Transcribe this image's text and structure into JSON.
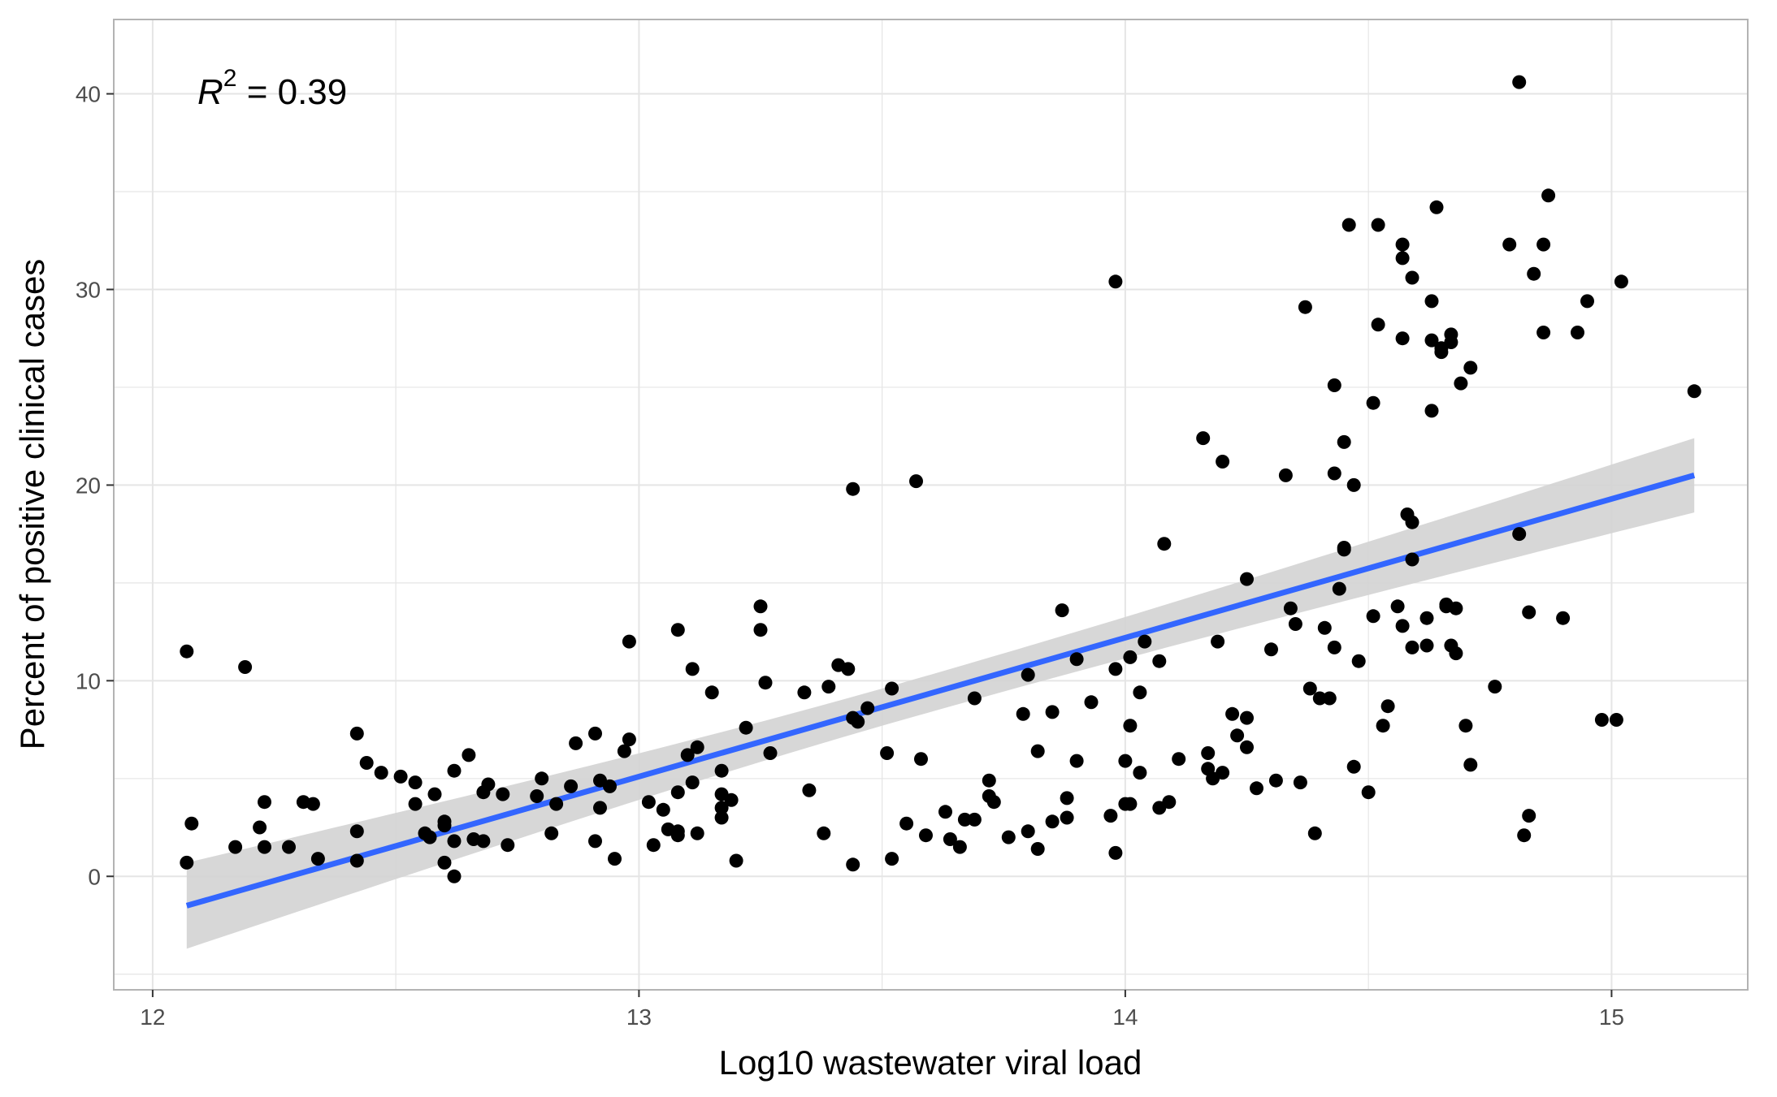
{
  "chart_data": {
    "type": "scatter",
    "xlabel": "Log10 wastewater viral load",
    "ylabel": "Percent of positive clinical cases",
    "xlim": [
      11.92,
      15.28
    ],
    "ylim": [
      -5.8,
      43.8
    ],
    "x_ticks": [
      "12",
      "13",
      "14",
      "15"
    ],
    "y_ticks": [
      "0",
      "10",
      "20",
      "30",
      "40"
    ],
    "grid": true,
    "annotation": {
      "r_symbol": "R",
      "r_exp": "2",
      "rest": " = 0.39"
    },
    "colors": {
      "points": "#000000",
      "fit": "#3366ff",
      "band": "#d3d3d3",
      "grid": "#e5e5e5",
      "border": "#b3b3b3"
    },
    "fit": {
      "x_start": 12.07,
      "y_start": -1.5,
      "x_end": 15.17,
      "y_end": 20.5,
      "ci_start": [
        -3.7,
        0.7
      ],
      "ci_end": [
        18.6,
        22.4
      ]
    },
    "points": [
      [
        12.07,
        11.5
      ],
      [
        12.08,
        2.7
      ],
      [
        12.07,
        0.7
      ],
      [
        12.17,
        1.5
      ],
      [
        12.19,
        10.7
      ],
      [
        12.23,
        3.8
      ],
      [
        12.22,
        2.5
      ],
      [
        12.23,
        1.5
      ],
      [
        12.28,
        1.5
      ],
      [
        12.31,
        3.8
      ],
      [
        12.33,
        3.7
      ],
      [
        12.34,
        0.9
      ],
      [
        12.42,
        7.3
      ],
      [
        12.42,
        2.3
      ],
      [
        12.42,
        0.8
      ],
      [
        12.44,
        5.8
      ],
      [
        12.47,
        5.3
      ],
      [
        12.51,
        5.1
      ],
      [
        12.54,
        4.8
      ],
      [
        12.54,
        3.7
      ],
      [
        12.56,
        2.2
      ],
      [
        12.57,
        2.0
      ],
      [
        12.58,
        4.2
      ],
      [
        12.6,
        2.8
      ],
      [
        12.6,
        2.6
      ],
      [
        12.6,
        0.7
      ],
      [
        12.62,
        5.4
      ],
      [
        12.62,
        1.8
      ],
      [
        12.62,
        0.0
      ],
      [
        12.65,
        6.2
      ],
      [
        12.66,
        1.9
      ],
      [
        12.68,
        4.3
      ],
      [
        12.68,
        1.8
      ],
      [
        12.69,
        4.7
      ],
      [
        12.72,
        4.2
      ],
      [
        12.73,
        1.6
      ],
      [
        12.79,
        4.1
      ],
      [
        12.8,
        5.0
      ],
      [
        12.82,
        2.2
      ],
      [
        12.83,
        3.7
      ],
      [
        12.86,
        4.6
      ],
      [
        12.87,
        6.8
      ],
      [
        12.91,
        7.3
      ],
      [
        12.91,
        1.8
      ],
      [
        12.92,
        3.5
      ],
      [
        12.92,
        4.9
      ],
      [
        12.94,
        4.6
      ],
      [
        12.95,
        0.9
      ],
      [
        12.97,
        6.4
      ],
      [
        12.98,
        7.0
      ],
      [
        12.98,
        12.0
      ],
      [
        13.02,
        3.8
      ],
      [
        13.03,
        1.6
      ],
      [
        13.05,
        3.4
      ],
      [
        13.06,
        2.4
      ],
      [
        13.08,
        2.1
      ],
      [
        13.08,
        2.3
      ],
      [
        13.08,
        4.3
      ],
      [
        13.08,
        12.6
      ],
      [
        13.1,
        6.2
      ],
      [
        13.11,
        10.6
      ],
      [
        13.11,
        4.8
      ],
      [
        13.12,
        6.6
      ],
      [
        13.12,
        2.2
      ],
      [
        13.15,
        9.4
      ],
      [
        13.17,
        5.4
      ],
      [
        13.17,
        4.2
      ],
      [
        13.17,
        3.5
      ],
      [
        13.17,
        3.0
      ],
      [
        13.19,
        3.9
      ],
      [
        13.2,
        0.8
      ],
      [
        13.22,
        7.6
      ],
      [
        13.25,
        13.8
      ],
      [
        13.25,
        12.6
      ],
      [
        13.26,
        9.9
      ],
      [
        13.27,
        6.3
      ],
      [
        13.34,
        9.4
      ],
      [
        13.35,
        4.4
      ],
      [
        13.38,
        2.2
      ],
      [
        13.39,
        9.7
      ],
      [
        13.41,
        10.8
      ],
      [
        13.43,
        10.6
      ],
      [
        13.44,
        8.1
      ],
      [
        13.44,
        19.8
      ],
      [
        13.44,
        0.6
      ],
      [
        13.45,
        7.9
      ],
      [
        13.47,
        8.6
      ],
      [
        13.51,
        6.3
      ],
      [
        13.52,
        9.6
      ],
      [
        13.52,
        0.9
      ],
      [
        13.55,
        2.7
      ],
      [
        13.57,
        20.2
      ],
      [
        13.58,
        6.0
      ],
      [
        13.59,
        2.1
      ],
      [
        13.63,
        3.3
      ],
      [
        13.64,
        1.9
      ],
      [
        13.66,
        1.5
      ],
      [
        13.67,
        2.9
      ],
      [
        13.69,
        2.9
      ],
      [
        13.69,
        9.1
      ],
      [
        13.72,
        4.1
      ],
      [
        13.72,
        4.9
      ],
      [
        13.73,
        3.8
      ],
      [
        13.76,
        2.0
      ],
      [
        13.79,
        8.3
      ],
      [
        13.8,
        10.3
      ],
      [
        13.8,
        2.3
      ],
      [
        13.82,
        1.4
      ],
      [
        13.82,
        6.4
      ],
      [
        13.85,
        8.4
      ],
      [
        13.85,
        2.8
      ],
      [
        13.87,
        13.6
      ],
      [
        13.88,
        3.0
      ],
      [
        13.88,
        4.0
      ],
      [
        13.9,
        11.1
      ],
      [
        13.9,
        5.9
      ],
      [
        13.93,
        8.9
      ],
      [
        13.97,
        3.1
      ],
      [
        13.98,
        30.4
      ],
      [
        13.98,
        1.2
      ],
      [
        13.98,
        10.6
      ],
      [
        14.0,
        3.7
      ],
      [
        14.0,
        5.9
      ],
      [
        14.01,
        11.2
      ],
      [
        14.01,
        7.7
      ],
      [
        14.01,
        3.7
      ],
      [
        14.03,
        9.4
      ],
      [
        14.03,
        5.3
      ],
      [
        14.04,
        12.0
      ],
      [
        14.07,
        11.0
      ],
      [
        14.07,
        3.5
      ],
      [
        14.08,
        17.0
      ],
      [
        14.09,
        3.8
      ],
      [
        14.11,
        6.0
      ],
      [
        14.16,
        22.4
      ],
      [
        14.17,
        6.3
      ],
      [
        14.17,
        5.5
      ],
      [
        14.18,
        5.0
      ],
      [
        14.19,
        12.0
      ],
      [
        14.2,
        5.3
      ],
      [
        14.2,
        21.2
      ],
      [
        14.22,
        8.3
      ],
      [
        14.23,
        7.2
      ],
      [
        14.25,
        15.2
      ],
      [
        14.25,
        8.1
      ],
      [
        14.25,
        6.6
      ],
      [
        14.27,
        4.5
      ],
      [
        14.3,
        11.6
      ],
      [
        14.31,
        4.9
      ],
      [
        14.33,
        20.5
      ],
      [
        14.34,
        13.7
      ],
      [
        14.35,
        12.9
      ],
      [
        14.36,
        4.8
      ],
      [
        14.37,
        29.1
      ],
      [
        14.38,
        9.6
      ],
      [
        14.39,
        2.2
      ],
      [
        14.4,
        9.1
      ],
      [
        14.41,
        12.7
      ],
      [
        14.42,
        9.1
      ],
      [
        14.43,
        25.1
      ],
      [
        14.43,
        20.6
      ],
      [
        14.43,
        11.7
      ],
      [
        14.44,
        14.7
      ],
      [
        14.45,
        22.2
      ],
      [
        14.45,
        16.8
      ],
      [
        14.45,
        16.7
      ],
      [
        14.46,
        33.3
      ],
      [
        14.47,
        20.0
      ],
      [
        14.47,
        5.6
      ],
      [
        14.48,
        11.0
      ],
      [
        14.5,
        4.3
      ],
      [
        14.51,
        24.2
      ],
      [
        14.51,
        13.3
      ],
      [
        14.52,
        28.2
      ],
      [
        14.52,
        33.3
      ],
      [
        14.53,
        7.7
      ],
      [
        14.54,
        8.7
      ],
      [
        14.56,
        13.8
      ],
      [
        14.57,
        32.3
      ],
      [
        14.57,
        31.6
      ],
      [
        14.57,
        27.5
      ],
      [
        14.57,
        12.8
      ],
      [
        14.58,
        18.5
      ],
      [
        14.59,
        18.1
      ],
      [
        14.59,
        16.2
      ],
      [
        14.59,
        30.6
      ],
      [
        14.59,
        11.7
      ],
      [
        14.62,
        13.2
      ],
      [
        14.62,
        11.8
      ],
      [
        14.63,
        29.4
      ],
      [
        14.63,
        23.8
      ],
      [
        14.63,
        27.4
      ],
      [
        14.64,
        34.2
      ],
      [
        14.65,
        27.0
      ],
      [
        14.65,
        26.8
      ],
      [
        14.66,
        13.9
      ],
      [
        14.66,
        13.8
      ],
      [
        14.67,
        27.7
      ],
      [
        14.67,
        27.3
      ],
      [
        14.67,
        11.8
      ],
      [
        14.68,
        11.4
      ],
      [
        14.68,
        13.7
      ],
      [
        14.69,
        25.2
      ],
      [
        14.7,
        7.7
      ],
      [
        14.71,
        26.0
      ],
      [
        14.71,
        5.7
      ],
      [
        14.76,
        9.7
      ],
      [
        14.79,
        32.3
      ],
      [
        14.81,
        17.5
      ],
      [
        14.81,
        40.6
      ],
      [
        14.82,
        2.1
      ],
      [
        14.83,
        13.5
      ],
      [
        14.83,
        3.1
      ],
      [
        14.84,
        30.8
      ],
      [
        14.86,
        32.3
      ],
      [
        14.86,
        27.8
      ],
      [
        14.87,
        34.8
      ],
      [
        14.9,
        13.2
      ],
      [
        14.93,
        27.8
      ],
      [
        14.95,
        29.4
      ],
      [
        14.98,
        8.0
      ],
      [
        15.01,
        8.0
      ],
      [
        15.02,
        30.4
      ],
      [
        15.17,
        24.8
      ]
    ]
  }
}
